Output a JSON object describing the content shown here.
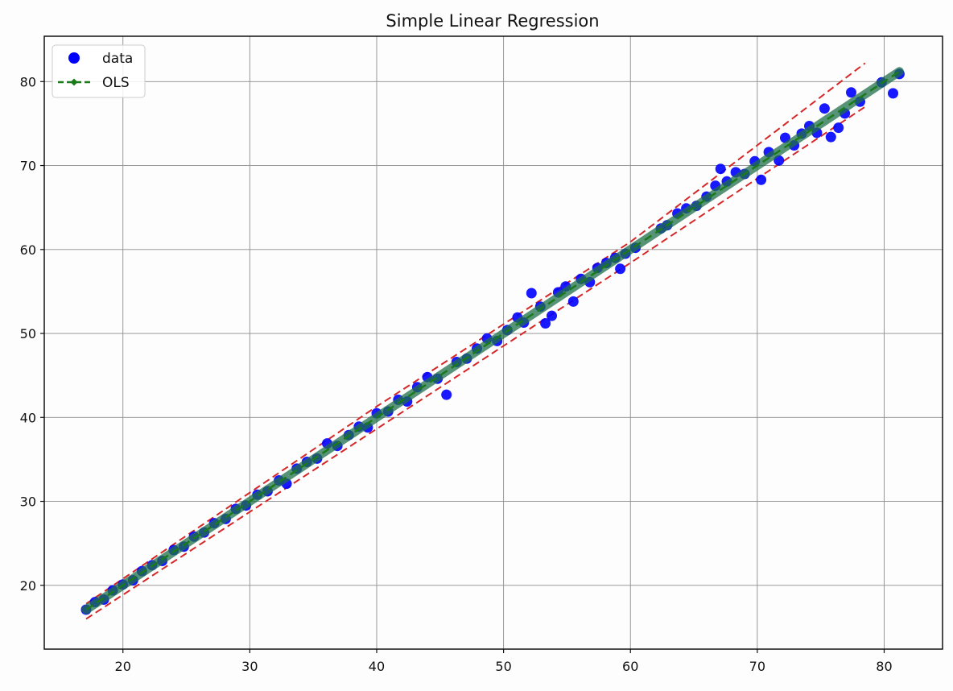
{
  "chart_data": {
    "type": "scatter",
    "title": "Simple Linear Regression",
    "xlabel": "",
    "ylabel": "",
    "xlim": [
      13.8,
      84.6
    ],
    "ylim": [
      12.4,
      85.4
    ],
    "xticks": [
      20,
      30,
      40,
      50,
      60,
      70,
      80
    ],
    "yticks": [
      20,
      30,
      40,
      50,
      60,
      70,
      80
    ],
    "grid": true,
    "legend_position": "top-left",
    "legend": [
      {
        "label": "data",
        "marker": "circle",
        "color": "#0000ff"
      },
      {
        "label": "OLS",
        "marker": "dashed-line-diamond",
        "color": "#1a7a1a"
      }
    ],
    "colors": {
      "data": "#0000ff",
      "ols": "#1a7a1a",
      "band": "#d62728"
    },
    "ols_fit": {
      "slope": 1.0,
      "intercept": 0.0,
      "x_range": [
        17.1,
        81.2
      ]
    },
    "prediction_band": {
      "lower": [
        [
          17.1,
          16.0
        ],
        [
          60.0,
          58.4
        ],
        [
          78.5,
          77.0
        ]
      ],
      "upper": [
        [
          17.1,
          17.8
        ],
        [
          40.0,
          41.3
        ],
        [
          60.0,
          60.9
        ],
        [
          78.5,
          82.2
        ]
      ]
    },
    "series": [
      {
        "name": "data",
        "points": [
          [
            17.1,
            17.1
          ],
          [
            17.8,
            18.0
          ],
          [
            18.5,
            18.3
          ],
          [
            19.2,
            19.4
          ],
          [
            20.0,
            20.1
          ],
          [
            20.8,
            20.6
          ],
          [
            21.5,
            21.7
          ],
          [
            22.3,
            22.4
          ],
          [
            23.1,
            22.9
          ],
          [
            24.0,
            24.2
          ],
          [
            24.8,
            24.6
          ],
          [
            25.6,
            25.8
          ],
          [
            26.4,
            26.3
          ],
          [
            27.2,
            27.4
          ],
          [
            28.1,
            27.9
          ],
          [
            28.9,
            29.1
          ],
          [
            29.7,
            29.5
          ],
          [
            30.6,
            30.8
          ],
          [
            31.4,
            31.2
          ],
          [
            32.3,
            32.5
          ],
          [
            32.9,
            32.1
          ],
          [
            33.7,
            33.9
          ],
          [
            34.5,
            34.7
          ],
          [
            35.3,
            35.1
          ],
          [
            36.1,
            36.9
          ],
          [
            36.9,
            36.6
          ],
          [
            37.8,
            37.9
          ],
          [
            38.6,
            38.9
          ],
          [
            39.3,
            38.8
          ],
          [
            40.0,
            40.5
          ],
          [
            40.9,
            40.7
          ],
          [
            41.7,
            42.1
          ],
          [
            42.4,
            41.9
          ],
          [
            43.2,
            43.6
          ],
          [
            44.0,
            44.8
          ],
          [
            44.8,
            44.6
          ],
          [
            45.5,
            42.7
          ],
          [
            46.3,
            46.6
          ],
          [
            47.1,
            47.0
          ],
          [
            47.9,
            48.2
          ],
          [
            48.7,
            49.4
          ],
          [
            49.5,
            49.1
          ],
          [
            50.3,
            50.4
          ],
          [
            51.1,
            51.9
          ],
          [
            51.6,
            51.3
          ],
          [
            52.2,
            54.8
          ],
          [
            52.9,
            53.2
          ],
          [
            53.3,
            51.2
          ],
          [
            53.8,
            52.1
          ],
          [
            54.3,
            54.9
          ],
          [
            54.9,
            55.6
          ],
          [
            55.5,
            53.8
          ],
          [
            56.1,
            56.5
          ],
          [
            56.8,
            56.1
          ],
          [
            57.4,
            57.8
          ],
          [
            58.1,
            58.4
          ],
          [
            58.8,
            59.0
          ],
          [
            59.2,
            57.7
          ],
          [
            59.6,
            59.5
          ],
          [
            60.4,
            60.2
          ],
          [
            62.4,
            62.5
          ],
          [
            62.9,
            62.9
          ],
          [
            63.7,
            64.3
          ],
          [
            64.4,
            64.9
          ],
          [
            65.2,
            65.2
          ],
          [
            66.0,
            66.3
          ],
          [
            66.7,
            67.6
          ],
          [
            67.1,
            69.6
          ],
          [
            67.6,
            68.1
          ],
          [
            68.3,
            69.2
          ],
          [
            69.0,
            69.0
          ],
          [
            69.8,
            70.5
          ],
          [
            70.3,
            68.3
          ],
          [
            70.9,
            71.6
          ],
          [
            71.7,
            70.6
          ],
          [
            72.2,
            73.3
          ],
          [
            72.9,
            72.4
          ],
          [
            73.5,
            73.8
          ],
          [
            74.1,
            74.7
          ],
          [
            74.7,
            73.9
          ],
          [
            75.3,
            76.8
          ],
          [
            75.8,
            73.4
          ],
          [
            76.4,
            74.5
          ],
          [
            76.9,
            76.2
          ],
          [
            77.4,
            78.7
          ],
          [
            78.1,
            77.6
          ],
          [
            79.8,
            79.9
          ],
          [
            80.7,
            78.6
          ],
          [
            81.2,
            80.9
          ]
        ]
      }
    ]
  }
}
